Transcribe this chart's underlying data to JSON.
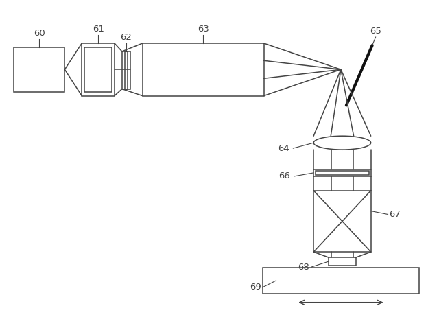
{
  "bg_color": "#ffffff",
  "line_color": "#444444",
  "label_color": "#222222",
  "fig_width": 6.4,
  "fig_height": 4.62
}
